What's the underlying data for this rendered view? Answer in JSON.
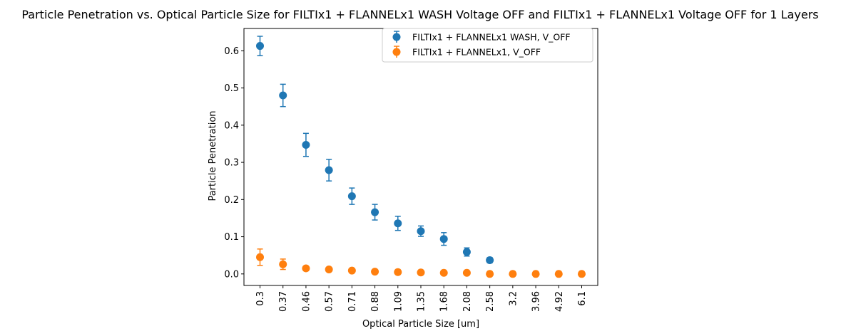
{
  "chart_data": {
    "type": "scatter",
    "title": "Particle Penetration vs. Optical Particle Size for FILTIx1 + FLANNELx1 WASH Voltage OFF and FILTIx1 + FLANNELx1 Voltage OFF for 1 Layers",
    "xlabel": "Optical Particle Size [um]",
    "ylabel": "Particle Penetration",
    "categories": [
      "0.3",
      "0.37",
      "0.46",
      "0.57",
      "0.71",
      "0.88",
      "1.09",
      "1.35",
      "1.68",
      "2.08",
      "2.58",
      "3.2",
      "3.96",
      "4.92",
      "6.1"
    ],
    "ylim": [
      -0.031,
      0.66
    ],
    "yticks": [
      "0.0",
      "0.1",
      "0.2",
      "0.3",
      "0.4",
      "0.5",
      "0.6"
    ],
    "legend_position": "upper right",
    "series": [
      {
        "name": "FILTIx1 + FLANNELx1 WASH, V_OFF",
        "color": "#1f77b4",
        "values": [
          0.613,
          0.48,
          0.347,
          0.279,
          0.209,
          0.166,
          0.136,
          0.115,
          0.094,
          0.059,
          0.037,
          null,
          null,
          null,
          null
        ],
        "errors": [
          0.026,
          0.03,
          0.031,
          0.029,
          0.022,
          0.021,
          0.019,
          0.014,
          0.017,
          0.011,
          0.007,
          null,
          null,
          null,
          null
        ]
      },
      {
        "name": "FILTIx1 + FLANNELx1, V_OFF",
        "color": "#ff7f0e",
        "values": [
          0.045,
          0.026,
          0.015,
          0.012,
          0.009,
          0.006,
          0.005,
          0.004,
          0.003,
          0.003,
          0.0,
          0.0,
          0.0,
          0.0,
          0.0
        ],
        "errors": [
          0.022,
          0.014,
          0.006,
          0.004,
          0.003,
          0.002,
          0.002,
          0.001,
          0.001,
          0.001,
          0.0,
          0.0,
          0.0,
          0.0,
          0.0
        ]
      }
    ]
  }
}
